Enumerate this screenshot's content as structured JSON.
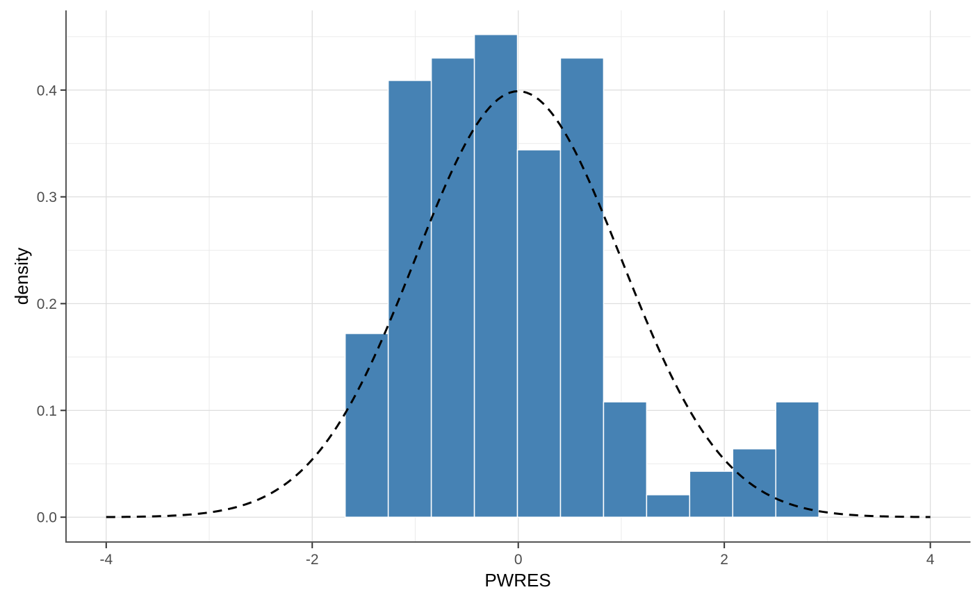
{
  "chart_data": {
    "type": "histogram",
    "title": "",
    "xlabel": "PWRES",
    "ylabel": "density",
    "legend": false,
    "grid": true,
    "xlim": [
      -4.39,
      4.39
    ],
    "ylim": [
      -0.0226,
      0.4746
    ],
    "x_ticks": {
      "values": [
        -4,
        -2,
        0,
        2,
        4
      ],
      "labels": [
        "-4",
        "-2",
        "0",
        "2",
        "4"
      ]
    },
    "y_ticks": {
      "values": [
        0.0,
        0.1,
        0.2,
        0.3,
        0.4
      ],
      "labels": [
        "0.0",
        "0.1",
        "0.2",
        "0.3",
        "0.4"
      ]
    },
    "x_minor": [
      -3,
      -1,
      1,
      3
    ],
    "y_minor": [
      0.05,
      0.15,
      0.25,
      0.35,
      0.45
    ],
    "bins": {
      "edges": [
        -1.68,
        -1.262,
        -0.844,
        -0.426,
        -0.008,
        0.41,
        0.828,
        1.246,
        1.664,
        2.082,
        2.5,
        2.918
      ],
      "densities": [
        0.172,
        0.409,
        0.43,
        0.452,
        0.344,
        0.43,
        0.108,
        0.021,
        0.043,
        0.064,
        0.108
      ]
    },
    "overlay_curve": {
      "name": "standard-normal-density",
      "distribution": "normal",
      "mean": 0,
      "sd": 1,
      "x_range": [
        -4,
        4
      ],
      "peak_density": 0.399,
      "style": "dashed"
    },
    "colors": {
      "bar_fill": "#4682B4",
      "bar_border": "#FFFFFF",
      "curve": "#000000",
      "grid_major": "#DEDEDE",
      "grid_minor": "#EBEBEB",
      "axis_line": "#555555",
      "tick_mark": "#333333",
      "tick_label": "#4D4D4D",
      "axis_title": "#000000",
      "background": "#FFFFFF"
    }
  }
}
